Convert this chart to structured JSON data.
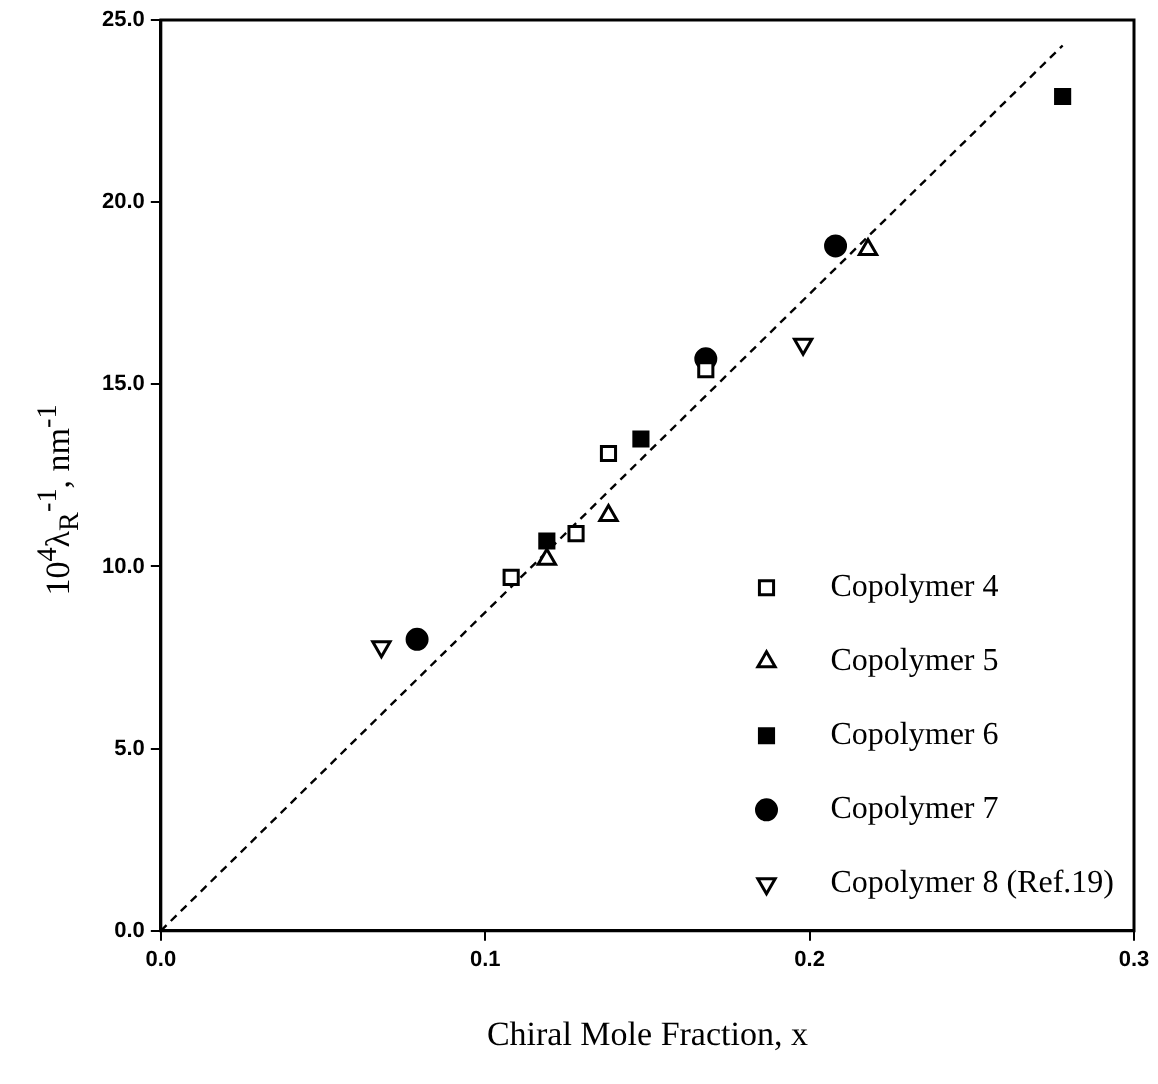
{
  "chart_data": {
    "type": "scatter",
    "xlabel": "Chiral Mole Fraction, x",
    "ylabel": "10$^{4}$λ$_{R}$$^{-1}$, nm$^{-1}$",
    "xlim": [
      0,
      0.3
    ],
    "xticks": [
      {
        "value": 0,
        "label": "0.0"
      },
      0.1,
      0.2,
      {
        "value": 0.3,
        "label": "0.3"
      }
    ],
    "ylim": [
      0,
      25
    ],
    "yticks": [
      {
        "value": 0,
        "label": "0.0"
      },
      {
        "value": 5,
        "label": "5.0"
      },
      {
        "value": 10,
        "label": "10.0"
      },
      {
        "value": 15,
        "label": "15.0"
      },
      {
        "value": 20,
        "label": "20.0"
      },
      {
        "value": 25,
        "label": "25.0"
      }
    ],
    "grid": false,
    "legend": "bottom right",
    "series": [
      {
        "name": "Copolymer 4",
        "color": "#000000",
        "marker": "square-open",
        "x": [
          0.108,
          0.128,
          0.138,
          0.168
        ],
        "values": [
          9.7,
          10.9,
          13.1,
          15.4
        ]
      },
      {
        "name": "Copolymer 5",
        "color": "#000000",
        "marker": "triangle-open",
        "x": [
          0.119,
          0.138,
          0.218
        ],
        "values": [
          10.2,
          11.4,
          18.7
        ]
      },
      {
        "name": "Copolymer 6",
        "color": "#000000",
        "marker": "square",
        "x": [
          0.119,
          0.148,
          0.278
        ],
        "values": [
          10.7,
          13.5,
          22.9
        ]
      },
      {
        "name": "Copolymer 7",
        "color": "#000000",
        "marker": "circle",
        "x": [
          0.079,
          0.168,
          0.208
        ],
        "values": [
          8.0,
          15.7,
          18.8
        ]
      },
      {
        "name": "Copolymer 8 (Ref.19)",
        "color": "#000000",
        "marker": "triangle-down-open",
        "x": [
          0.068,
          0.198
        ],
        "values": [
          7.8,
          16.1
        ]
      },
      {
        "type": "line",
        "color": "#000000",
        "line_style": "dashed",
        "marker": "none",
        "x": [
          0,
          0.278
        ],
        "values": [
          0,
          24.3
        ]
      }
    ]
  }
}
